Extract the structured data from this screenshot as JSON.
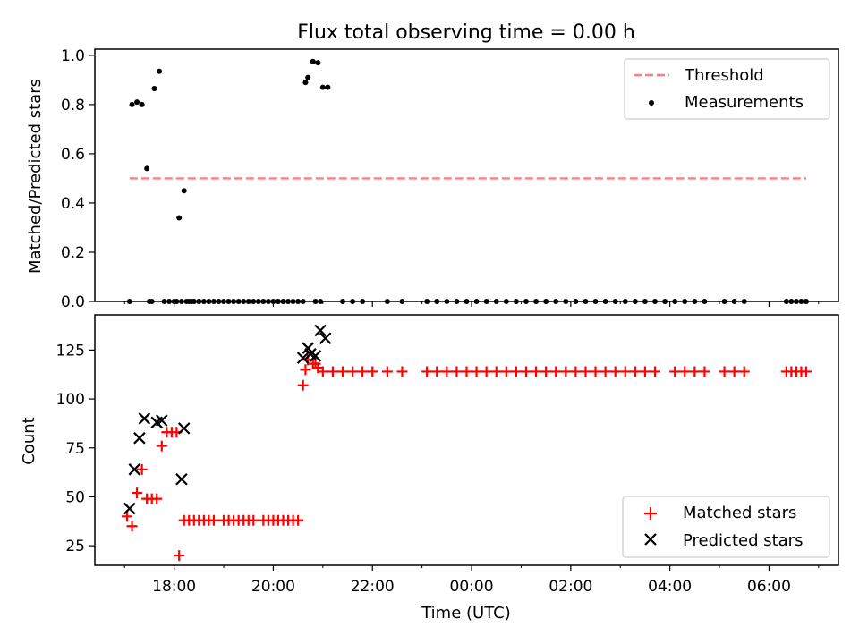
{
  "chart_data": [
    {
      "type": "scatter",
      "title": "Flux total observing time = 0.00 h",
      "xlabel": "",
      "ylabel": "Matched/Predicted stars",
      "x_unit": "hours from 18:00 UTC",
      "ylim": [
        0,
        1.025
      ],
      "yticks": [
        0.0,
        0.2,
        0.4,
        0.6,
        0.8,
        1.0
      ],
      "ytick_labels": [
        "0.0",
        "0.2",
        "0.4",
        "0.6",
        "0.8",
        "1.0"
      ],
      "legend_position": "top-right",
      "legend": [
        "Threshold",
        "Measurements"
      ],
      "series": [
        {
          "name": "Threshold",
          "style": "dashed-line",
          "color": "#ff7f7f",
          "x": [
            -0.9,
            12.75
          ],
          "y": [
            0.5,
            0.5
          ]
        },
        {
          "name": "Measurements",
          "style": "dot",
          "color": "#000000",
          "x": [
            -0.9,
            -0.85,
            -0.75,
            -0.65,
            -0.55,
            -0.5,
            -0.45,
            -0.4,
            -0.3,
            -0.2,
            -0.1,
            0.0,
            0.05,
            0.1,
            0.15,
            0.2,
            0.25,
            0.3,
            0.35,
            0.4,
            0.5,
            0.6,
            0.7,
            0.8,
            0.9,
            1.0,
            1.1,
            1.2,
            1.3,
            1.4,
            1.5,
            1.6,
            1.7,
            1.8,
            1.9,
            2.0,
            2.1,
            2.2,
            2.3,
            2.4,
            2.5,
            2.6,
            2.65,
            2.7,
            2.8,
            2.85,
            2.9,
            2.95,
            3.0,
            3.1,
            3.4,
            3.6,
            3.8,
            4.3,
            4.6,
            5.1,
            5.3,
            5.5,
            5.7,
            5.9,
            6.1,
            6.3,
            6.5,
            6.7,
            6.9,
            7.1,
            7.3,
            7.5,
            7.7,
            7.9,
            8.1,
            8.3,
            8.5,
            8.7,
            8.9,
            9.1,
            9.3,
            9.5,
            9.7,
            9.9,
            10.1,
            10.3,
            10.5,
            10.7,
            11.1,
            11.3,
            11.5,
            12.35,
            12.45,
            12.55,
            12.65,
            12.75
          ],
          "y": [
            0,
            0.8,
            0.81,
            0.8,
            0.54,
            0,
            0,
            0.865,
            0.935,
            0,
            0,
            0,
            0,
            0.34,
            0,
            0.45,
            0,
            0,
            0,
            0,
            0,
            0,
            0,
            0,
            0,
            0,
            0,
            0,
            0,
            0,
            0,
            0,
            0,
            0,
            0,
            0,
            0,
            0,
            0,
            0,
            0,
            0,
            0.89,
            0.91,
            0.975,
            0,
            0.97,
            0,
            0.87,
            0.87,
            0,
            0,
            0,
            0,
            0,
            0,
            0,
            0,
            0,
            0,
            0,
            0,
            0,
            0,
            0,
            0,
            0,
            0,
            0,
            0,
            0,
            0,
            0,
            0,
            0,
            0,
            0,
            0,
            0,
            0,
            0,
            0,
            0,
            0,
            0,
            0,
            0,
            0,
            0,
            0,
            0,
            0
          ]
        }
      ]
    },
    {
      "type": "scatter",
      "title": "",
      "xlabel": "Time (UTC)",
      "ylabel": "Count",
      "x_unit": "hours from 18:00 UTC",
      "xlim": [
        -1.6,
        13.4
      ],
      "xticks": [
        0,
        2,
        4,
        6,
        8,
        10,
        12
      ],
      "xtick_labels": [
        "18:00",
        "20:00",
        "22:00",
        "00:00",
        "02:00",
        "04:00",
        "06:00"
      ],
      "ylim": [
        15,
        143
      ],
      "yticks": [
        25,
        50,
        75,
        100,
        125
      ],
      "ytick_labels": [
        "25",
        "50",
        "75",
        "100",
        "125"
      ],
      "legend_position": "lower-right",
      "legend": [
        "Matched stars",
        "Predicted stars"
      ],
      "series": [
        {
          "name": "Matched stars",
          "style": "plus",
          "color": "#ff0000",
          "x": [
            -0.95,
            -0.85,
            -0.75,
            -0.65,
            -0.55,
            -0.45,
            -0.35,
            -0.25,
            -0.15,
            -0.05,
            0.05,
            0.1,
            0.2,
            0.3,
            0.4,
            0.5,
            0.6,
            0.7,
            0.8,
            1.0,
            1.1,
            1.2,
            1.3,
            1.4,
            1.5,
            1.6,
            1.8,
            1.9,
            2.0,
            2.1,
            2.2,
            2.3,
            2.4,
            2.5,
            2.6,
            2.65,
            2.7,
            2.8,
            2.85,
            2.9,
            3.0,
            3.2,
            3.4,
            3.6,
            3.8,
            4.0,
            4.3,
            4.6,
            5.1,
            5.3,
            5.5,
            5.7,
            5.9,
            6.1,
            6.3,
            6.5,
            6.7,
            6.9,
            7.1,
            7.3,
            7.5,
            7.7,
            7.9,
            8.1,
            8.3,
            8.5,
            8.7,
            8.9,
            9.1,
            9.3,
            9.5,
            9.7,
            10.1,
            10.3,
            10.5,
            10.7,
            11.1,
            11.3,
            11.5,
            12.35,
            12.45,
            12.55,
            12.65,
            12.75
          ],
          "y": [
            40,
            35,
            52,
            64,
            49,
            49,
            49,
            76,
            83,
            83,
            83,
            20,
            38,
            38,
            38,
            38,
            38,
            38,
            38,
            38,
            38,
            38,
            38,
            38,
            38,
            38,
            38,
            38,
            38,
            38,
            38,
            38,
            38,
            38,
            107,
            115,
            120,
            118,
            118,
            116,
            114,
            114,
            114,
            114,
            114,
            114,
            114,
            114,
            114,
            114,
            114,
            114,
            114,
            114,
            114,
            114,
            114,
            114,
            114,
            114,
            114,
            114,
            114,
            114,
            114,
            114,
            114,
            114,
            114,
            114,
            114,
            114,
            114,
            114,
            114,
            114,
            114,
            114,
            114,
            114,
            114,
            114,
            114,
            114
          ]
        },
        {
          "name": "Predicted stars",
          "style": "x",
          "color": "#000000",
          "x": [
            -0.9,
            -0.8,
            -0.7,
            -0.6,
            -0.35,
            -0.25,
            0.15,
            0.2,
            2.6,
            2.7,
            2.75,
            2.85,
            2.95,
            3.05
          ],
          "y": [
            44,
            64,
            80,
            90,
            88,
            89,
            59,
            85,
            121,
            126,
            123,
            122,
            135,
            131
          ]
        }
      ]
    }
  ]
}
